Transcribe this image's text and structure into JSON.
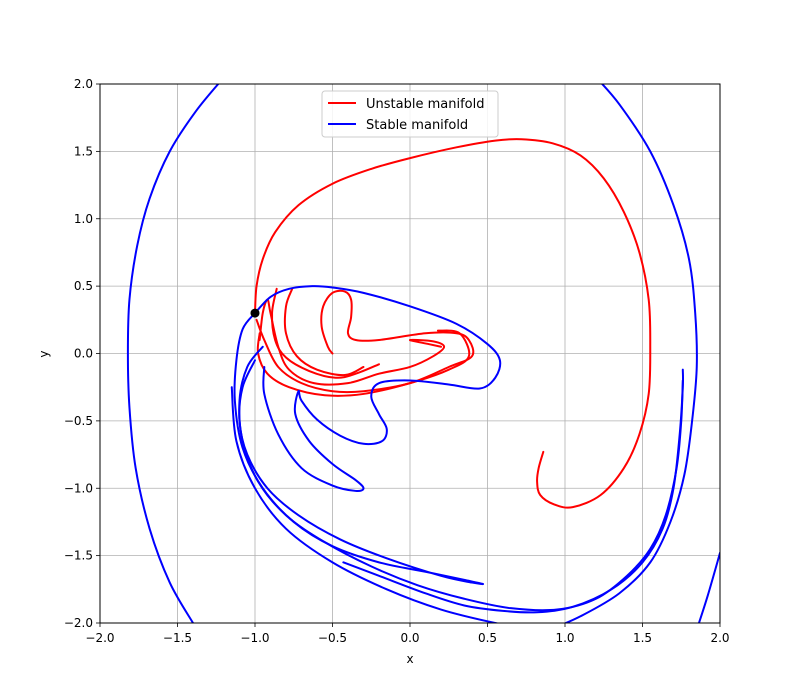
{
  "chart_data": {
    "type": "line",
    "title": "",
    "xlabel": "x",
    "ylabel": "y",
    "xlim": [
      -2.0,
      2.0
    ],
    "ylim": [
      -2.0,
      2.0
    ],
    "grid": true,
    "legend_position": "upper-center",
    "x_ticks": [
      "−2.0",
      "−1.5",
      "−1.0",
      "−0.5",
      "0.0",
      "0.5",
      "1.0",
      "1.5",
      "2.0"
    ],
    "y_ticks": [
      "−2.0",
      "−1.5",
      "−1.0",
      "−0.5",
      "0.0",
      "0.5",
      "1.0",
      "1.5",
      "2.0"
    ],
    "fixed_point": {
      "x": -1.0,
      "y": 0.3,
      "color": "#000000"
    },
    "series": [
      {
        "name": "Unstable manifold",
        "color": "#ff0000",
        "segments": [
          [
            [
              -1.0,
              0.3
            ],
            [
              -0.99,
              0.5
            ],
            [
              -0.95,
              0.7
            ],
            [
              -0.87,
              0.9
            ],
            [
              -0.72,
              1.1
            ],
            [
              -0.5,
              1.26
            ],
            [
              -0.25,
              1.37
            ],
            [
              0.0,
              1.45
            ],
            [
              0.3,
              1.53
            ],
            [
              0.55,
              1.58
            ],
            [
              0.72,
              1.59
            ],
            [
              0.92,
              1.56
            ],
            [
              1.1,
              1.47
            ],
            [
              1.25,
              1.3
            ],
            [
              1.38,
              1.05
            ],
            [
              1.48,
              0.75
            ],
            [
              1.54,
              0.4
            ],
            [
              1.55,
              0.05
            ],
            [
              1.54,
              -0.3
            ],
            [
              1.48,
              -0.6
            ],
            [
              1.38,
              -0.85
            ],
            [
              1.23,
              -1.05
            ],
            [
              1.05,
              -1.14
            ],
            [
              0.93,
              -1.12
            ],
            [
              0.84,
              -1.05
            ],
            [
              0.82,
              -0.95
            ],
            [
              0.83,
              -0.85
            ],
            [
              0.86,
              -0.73
            ]
          ],
          [
            [
              -0.97,
              0.1
            ],
            [
              -0.95,
              0.3
            ],
            [
              -0.92,
              0.4
            ],
            [
              -0.9,
              0.3
            ],
            [
              -0.85,
              0.05
            ],
            [
              -0.78,
              -0.12
            ],
            [
              -0.62,
              -0.22
            ],
            [
              -0.4,
              -0.22
            ],
            [
              -0.2,
              -0.15
            ],
            [
              0.0,
              -0.1
            ],
            [
              0.15,
              -0.02
            ],
            [
              0.22,
              0.05
            ],
            [
              0.15,
              0.09
            ],
            [
              0.0,
              0.1
            ],
            [
              0.12,
              0.07
            ],
            [
              0.2,
              0.05
            ]
          ],
          [
            [
              -0.99,
              0.25
            ],
            [
              -0.94,
              0.1
            ],
            [
              -0.85,
              -0.1
            ],
            [
              -0.7,
              -0.22
            ],
            [
              -0.5,
              -0.28
            ],
            [
              -0.3,
              -0.28
            ],
            [
              0.0,
              -0.22
            ],
            [
              0.25,
              -0.1
            ],
            [
              0.4,
              -0.02
            ],
            [
              0.38,
              0.1
            ],
            [
              0.3,
              0.15
            ],
            [
              0.1,
              0.15
            ],
            [
              -0.2,
              0.1
            ],
            [
              -0.35,
              0.1
            ],
            [
              -0.4,
              0.15
            ],
            [
              -0.38,
              0.27
            ],
            [
              -0.38,
              0.4
            ],
            [
              -0.42,
              0.46
            ],
            [
              -0.5,
              0.45
            ],
            [
              -0.56,
              0.35
            ],
            [
              -0.57,
              0.2
            ],
            [
              -0.53,
              0.05
            ],
            [
              -0.5,
              0.0
            ]
          ],
          [
            [
              -0.97,
              0.15
            ],
            [
              -0.98,
              0.0
            ],
            [
              -0.92,
              -0.15
            ],
            [
              -0.78,
              -0.25
            ],
            [
              -0.55,
              -0.31
            ],
            [
              -0.3,
              -0.3
            ],
            [
              0.0,
              -0.22
            ],
            [
              0.25,
              -0.12
            ],
            [
              0.38,
              -0.02
            ],
            [
              0.32,
              0.15
            ],
            [
              0.18,
              0.17
            ]
          ],
          [
            [
              -0.76,
              0.48
            ],
            [
              -0.8,
              0.35
            ],
            [
              -0.8,
              0.15
            ],
            [
              -0.73,
              -0.02
            ],
            [
              -0.6,
              -0.12
            ],
            [
              -0.42,
              -0.16
            ],
            [
              -0.3,
              -0.1
            ]
          ],
          [
            [
              -0.86,
              0.48
            ],
            [
              -0.89,
              0.3
            ],
            [
              -0.87,
              0.1
            ],
            [
              -0.8,
              -0.03
            ],
            [
              -0.65,
              -0.13
            ],
            [
              -0.48,
              -0.18
            ],
            [
              -0.35,
              -0.15
            ],
            [
              -0.2,
              -0.08
            ]
          ]
        ]
      },
      {
        "name": "Stable manifold",
        "color": "#0000ff",
        "segments": [
          [
            [
              -1.0,
              0.3
            ],
            [
              -0.9,
              0.42
            ],
            [
              -0.78,
              0.48
            ],
            [
              -0.63,
              0.5
            ],
            [
              -0.5,
              0.49
            ],
            [
              -0.3,
              0.45
            ],
            [
              0.0,
              0.35
            ],
            [
              0.3,
              0.22
            ],
            [
              0.5,
              0.07
            ],
            [
              0.58,
              -0.05
            ],
            [
              0.55,
              -0.18
            ],
            [
              0.45,
              -0.26
            ],
            [
              0.25,
              -0.23
            ],
            [
              0.0,
              -0.2
            ],
            [
              -0.2,
              -0.22
            ],
            [
              -0.25,
              -0.32
            ],
            [
              -0.2,
              -0.45
            ],
            [
              -0.15,
              -0.56
            ],
            [
              -0.18,
              -0.65
            ],
            [
              -0.3,
              -0.67
            ],
            [
              -0.45,
              -0.61
            ],
            [
              -0.6,
              -0.49
            ],
            [
              -0.7,
              -0.35
            ],
            [
              -0.72,
              -0.28
            ],
            [
              -0.74,
              -0.45
            ],
            [
              -0.65,
              -0.65
            ],
            [
              -0.5,
              -0.82
            ],
            [
              -0.35,
              -0.94
            ],
            [
              -0.3,
              -1.0
            ],
            [
              -0.35,
              -1.02
            ],
            [
              -0.5,
              -0.98
            ],
            [
              -0.7,
              -0.85
            ],
            [
              -0.85,
              -0.6
            ],
            [
              -0.94,
              -0.3
            ],
            [
              -0.94,
              -0.1
            ]
          ],
          [
            [
              -1.0,
              0.3
            ],
            [
              -1.08,
              0.18
            ],
            [
              -1.12,
              -0.05
            ],
            [
              -1.13,
              -0.35
            ],
            [
              -1.08,
              -0.7
            ],
            [
              -0.95,
              -1.0
            ],
            [
              -0.75,
              -1.25
            ],
            [
              -0.5,
              -1.43
            ],
            [
              -0.2,
              -1.55
            ],
            [
              0.1,
              -1.62
            ],
            [
              0.35,
              -1.68
            ],
            [
              0.47,
              -1.71
            ],
            [
              0.4,
              -1.7
            ],
            [
              0.2,
              -1.65
            ],
            [
              -0.15,
              -1.52
            ],
            [
              -0.45,
              -1.38
            ],
            [
              -0.72,
              -1.2
            ],
            [
              -0.92,
              -1.0
            ],
            [
              -1.05,
              -0.75
            ],
            [
              -1.1,
              -0.5
            ],
            [
              -1.08,
              -0.25
            ],
            [
              -1.0,
              -0.05
            ]
          ],
          [
            [
              -0.43,
              -1.55
            ],
            [
              -0.2,
              -1.65
            ],
            [
              0.1,
              -1.78
            ],
            [
              0.35,
              -1.87
            ],
            [
              0.6,
              -1.91
            ],
            [
              0.82,
              -1.92
            ],
            [
              1.05,
              -1.88
            ],
            [
              1.3,
              -1.75
            ],
            [
              1.5,
              -1.55
            ],
            [
              1.63,
              -1.3
            ],
            [
              1.7,
              -1.0
            ],
            [
              1.74,
              -0.6
            ],
            [
              1.76,
              -0.25
            ],
            [
              1.76,
              -0.12
            ]
          ],
          [
            [
              -0.95,
              0.05
            ],
            [
              -1.05,
              -0.1
            ],
            [
              -1.1,
              -0.35
            ],
            [
              -1.08,
              -0.65
            ],
            [
              -0.98,
              -0.95
            ],
            [
              -0.8,
              -1.2
            ],
            [
              -0.55,
              -1.4
            ],
            [
              -0.25,
              -1.58
            ],
            [
              0.05,
              -1.72
            ],
            [
              0.35,
              -1.82
            ],
            [
              0.65,
              -1.89
            ],
            [
              0.95,
              -1.9
            ],
            [
              1.2,
              -1.82
            ],
            [
              1.4,
              -1.65
            ],
            [
              1.55,
              -1.45
            ],
            [
              1.65,
              -1.2
            ],
            [
              1.72,
              -0.85
            ],
            [
              1.75,
              -0.5
            ],
            [
              1.76,
              -0.2
            ]
          ],
          [
            [
              0.9,
              -2.05
            ],
            [
              1.1,
              -1.95
            ],
            [
              1.35,
              -1.78
            ],
            [
              1.55,
              -1.55
            ],
            [
              1.68,
              -1.25
            ],
            [
              1.77,
              -0.9
            ],
            [
              1.82,
              -0.5
            ],
            [
              1.85,
              -0.1
            ],
            [
              1.84,
              0.3
            ],
            [
              1.8,
              0.7
            ],
            [
              1.7,
              1.1
            ],
            [
              1.55,
              1.5
            ],
            [
              1.35,
              1.85
            ],
            [
              1.2,
              2.05
            ]
          ],
          [
            [
              -1.4,
              -2.0
            ],
            [
              -1.55,
              -1.7
            ],
            [
              -1.68,
              -1.3
            ],
            [
              -1.77,
              -0.85
            ],
            [
              -1.81,
              -0.4
            ],
            [
              -1.82,
              0.0
            ],
            [
              -1.81,
              0.4
            ],
            [
              -1.76,
              0.8
            ],
            [
              -1.68,
              1.15
            ],
            [
              -1.55,
              1.5
            ],
            [
              -1.38,
              1.8
            ],
            [
              -1.2,
              2.05
            ]
          ],
          [
            [
              -1.15,
              -0.25
            ],
            [
              -1.12,
              -0.65
            ],
            [
              -1.0,
              -1.0
            ],
            [
              -0.8,
              -1.3
            ],
            [
              -0.5,
              -1.55
            ],
            [
              -0.15,
              -1.75
            ],
            [
              0.2,
              -1.9
            ],
            [
              0.55,
              -2.0
            ],
            [
              0.8,
              -2.05
            ]
          ],
          [
            [
              1.85,
              -2.05
            ],
            [
              1.92,
              -1.8
            ],
            [
              2.0,
              -1.48
            ]
          ]
        ]
      }
    ]
  }
}
